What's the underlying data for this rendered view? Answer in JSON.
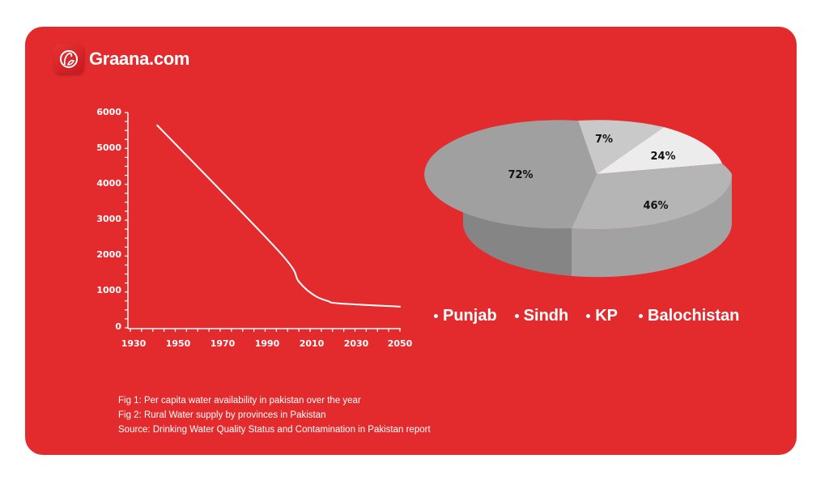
{
  "brand": {
    "name": "Graana.com",
    "icon": "graana-logo-icon"
  },
  "colors": {
    "background": "#e32b2e",
    "text": "#ffffff",
    "line": "#ffffff",
    "slice_punjab": "#a0a0a0",
    "slice_sindh": "#c8c8c8",
    "slice_kp": "#ececec",
    "slice_balochistan": "#b4b4b4"
  },
  "chart_data": [
    {
      "type": "line",
      "title": "Per capita water availability in pakistan over the year",
      "xlabel": "",
      "ylabel": "",
      "x_ticks": [
        "1930",
        "1950",
        "1970",
        "1990",
        "2010",
        "2030",
        "2050"
      ],
      "y_ticks": [
        "0",
        "1000",
        "2000",
        "3000",
        "4000",
        "5000",
        "6000"
      ],
      "xlim": [
        1930,
        2050
      ],
      "ylim": [
        0,
        6000
      ],
      "grid": false,
      "x": [
        1942,
        1996,
        2005,
        2012,
        2018,
        2023,
        2050
      ],
      "values": [
        5640,
        2140,
        1290,
        900,
        745,
        680,
        590
      ]
    },
    {
      "type": "pie",
      "title": "Rural Water supply by provinces in Pakistan",
      "categories": [
        "Punjab",
        "Sindh",
        "KP",
        "Balochistan"
      ],
      "values": [
        72,
        7,
        24,
        46
      ],
      "labels": [
        "72%",
        "7%",
        "24%",
        "46%"
      ],
      "legend_position": "bottom"
    }
  ],
  "line_chart": {
    "y_labels": [
      "6000",
      "5000",
      "4000",
      "3000",
      "2000",
      "1000",
      "0"
    ],
    "x_labels": [
      "1930",
      "1950",
      "1970",
      "1990",
      "2010",
      "2030",
      "2050"
    ]
  },
  "pie_chart": {
    "labels": {
      "punjab": "72%",
      "sindh": "7%",
      "kp": "24%",
      "balochistan": "46%"
    }
  },
  "legend": {
    "items": [
      "Punjab",
      "Sindh",
      "KP",
      "Balochistan"
    ]
  },
  "captions": {
    "fig1": "Fig 1:  Per capita water availability in pakistan over the year",
    "fig2": "Fig 2:  Rural Water supply by provinces in Pakistan",
    "source": "Source:  Drinking Water Quality Status and Contamination in Pakistan report"
  }
}
